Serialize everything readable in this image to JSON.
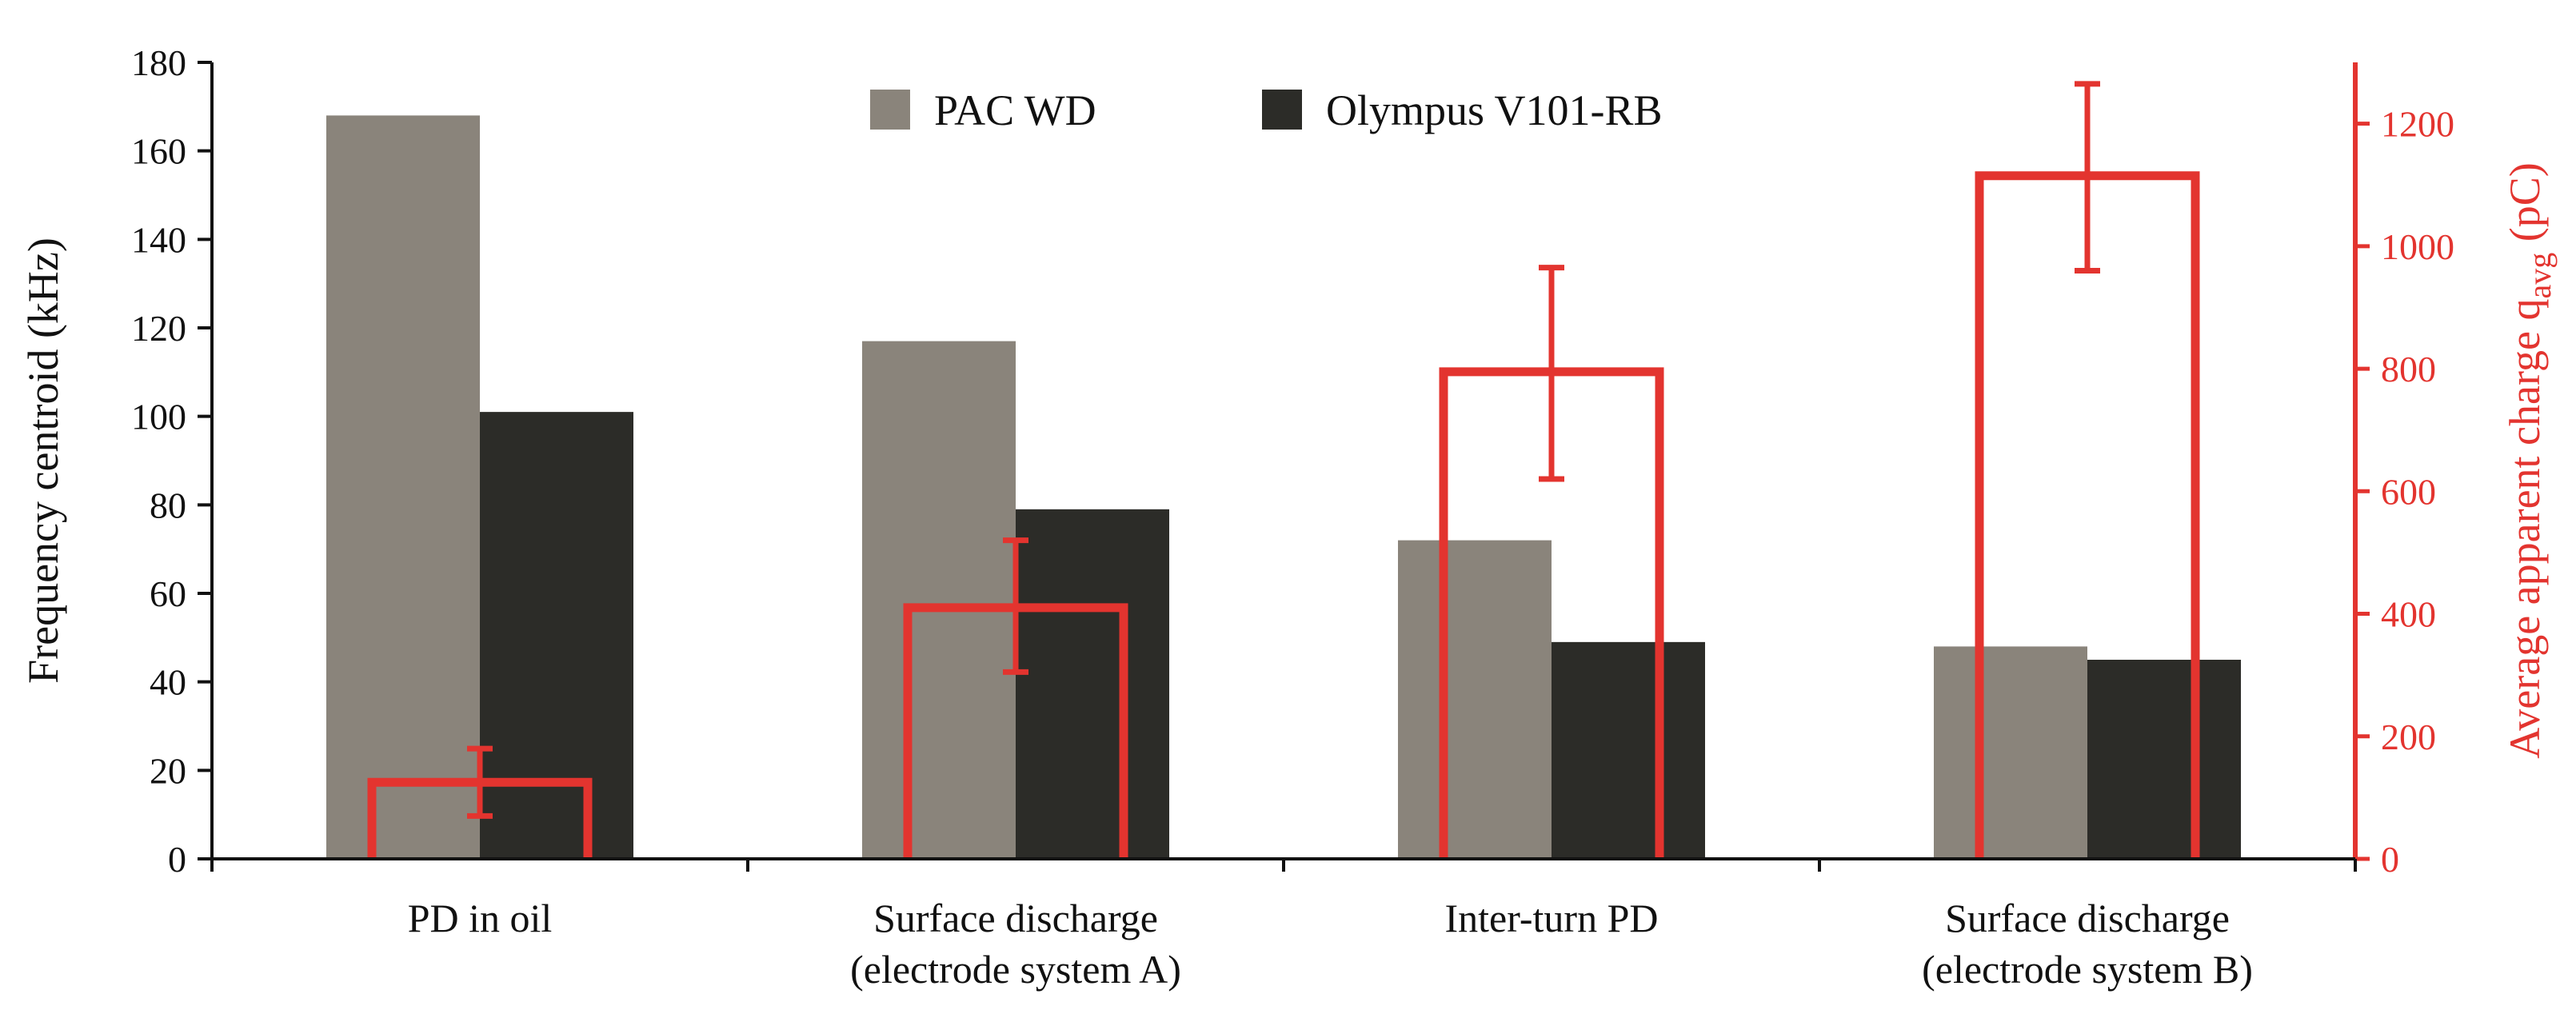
{
  "chart_data": {
    "type": "bar",
    "categories": [
      [
        "PD in oil"
      ],
      [
        "Surface discharge",
        "(electrode system A)"
      ],
      [
        "Inter-turn PD"
      ],
      [
        "Surface discharge",
        "(electrode system B)"
      ]
    ],
    "series": [
      {
        "name": "PAC WD",
        "color": "#8a847b",
        "values": [
          168,
          117,
          72,
          48
        ]
      },
      {
        "name": "Olympus V101-RB",
        "color": "#2c2c28",
        "values": [
          101,
          79,
          49,
          45
        ]
      }
    ],
    "secondary_series": {
      "type": "bar-outline-with-error",
      "color": "#e3342f",
      "values": [
        125,
        410,
        795,
        1115
      ],
      "error_low": [
        70,
        305,
        620,
        960
      ],
      "error_high": [
        180,
        520,
        965,
        1265
      ]
    },
    "ylabel": "Frequency centroid (kHz)",
    "ylim": [
      0,
      180
    ],
    "yticks": [
      0,
      20,
      40,
      60,
      80,
      100,
      120,
      140,
      160,
      180
    ],
    "y2label": {
      "main": "Average apparent charge q",
      "sub": "avg",
      "unit": " (pC)"
    },
    "y2lim": [
      0,
      1300
    ],
    "y2ticks": [
      0,
      200,
      400,
      600,
      800,
      1000,
      1200
    ],
    "legend_position": "top-center",
    "grid": false
  }
}
